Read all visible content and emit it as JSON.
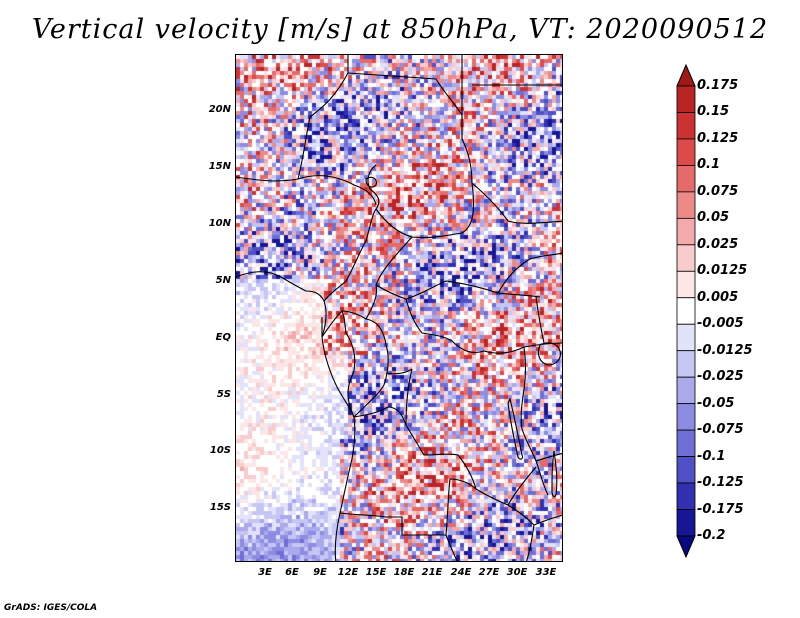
{
  "title": "Vertical velocity [m/s] at 850hPa, VT: 2020090512",
  "footer": "GrADS: IGES/COLA",
  "map": {
    "variable": "Vertical velocity",
    "units": "m/s",
    "level": "850hPa",
    "valid_time": "2020090512",
    "lat_labels": [
      "20N",
      "15N",
      "10N",
      "5N",
      "EQ",
      "5S",
      "10S",
      "15S"
    ],
    "lon_labels": [
      "3E",
      "6E",
      "9E",
      "12E",
      "15E",
      "18E",
      "21E",
      "24E",
      "27E",
      "30E",
      "33E"
    ]
  },
  "colorbar": {
    "labels": [
      "0.175",
      "0.15",
      "0.125",
      "0.1",
      "0.075",
      "0.05",
      "0.025",
      "0.0125",
      "0.005",
      "-0.005",
      "-0.0125",
      "-0.025",
      "-0.05",
      "-0.075",
      "-0.1",
      "-0.125",
      "-0.175",
      "-0.2"
    ],
    "colors": [
      "#a01818",
      "#bb2424",
      "#cc3232",
      "#dc4a4a",
      "#e56a6a",
      "#ec8a8a",
      "#f2aaaa",
      "#f8cccc",
      "#fce6e6",
      "#ffffff",
      "#e2e2fa",
      "#c6c6f4",
      "#a9a9ec",
      "#8c8ce2",
      "#6e6ed6",
      "#5050c6",
      "#3030b0",
      "#161696",
      "#0a0a80"
    ]
  }
}
